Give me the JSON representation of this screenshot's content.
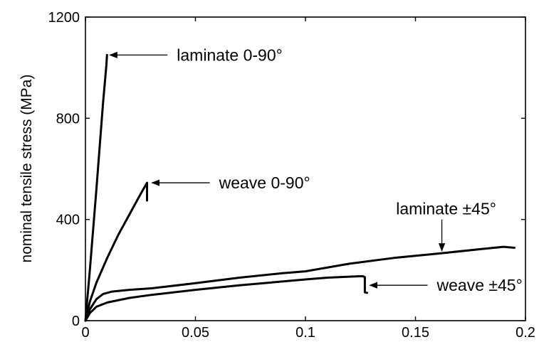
{
  "chart_data": {
    "type": "line",
    "title": "",
    "xlabel": "",
    "ylabel": "nominal tensile stress (MPa)",
    "xlim": [
      0,
      0.2
    ],
    "ylim": [
      0,
      1200
    ],
    "xticks": [
      "0",
      "0.05",
      "0.1",
      "0.15",
      "0.2"
    ],
    "yticks": [
      "0",
      "400",
      "800",
      "1200"
    ],
    "xtick_values": [
      0,
      0.05,
      0.1,
      0.15,
      0.2
    ],
    "ytick_values": [
      0,
      400,
      800,
      1200
    ],
    "grid": false,
    "legend": "none",
    "series": [
      {
        "name": "laminate 0-90°",
        "x": [
          0,
          0.002,
          0.005,
          0.008,
          0.0095,
          0.0098
        ],
        "y": [
          0,
          200,
          520,
          860,
          1010,
          1050
        ]
      },
      {
        "name": "weave 0-90°",
        "x": [
          0,
          0.002,
          0.005,
          0.01,
          0.015,
          0.02,
          0.025,
          0.028,
          0.028,
          0.028
        ],
        "y": [
          0,
          75,
          150,
          250,
          340,
          420,
          500,
          545,
          490,
          475
        ]
      },
      {
        "name": "laminate ±45°",
        "x": [
          0,
          0.002,
          0.005,
          0.008,
          0.012,
          0.02,
          0.03,
          0.05,
          0.07,
          0.09,
          0.1,
          0.12,
          0.14,
          0.16,
          0.18,
          0.19,
          0.195
        ],
        "y": [
          0,
          45,
          85,
          105,
          115,
          122,
          128,
          148,
          170,
          188,
          195,
          225,
          248,
          265,
          283,
          292,
          288
        ]
      },
      {
        "name": "weave ±45°",
        "x": [
          0,
          0.002,
          0.005,
          0.01,
          0.02,
          0.03,
          0.05,
          0.07,
          0.09,
          0.1,
          0.11,
          0.12,
          0.126,
          0.127,
          0.127,
          0.128
        ],
        "y": [
          0,
          30,
          55,
          72,
          90,
          102,
          122,
          140,
          155,
          163,
          170,
          174,
          176,
          172,
          112,
          110
        ]
      }
    ],
    "annotations": [
      {
        "text": "laminate 0-90°",
        "target": [
          0.0098,
          1050
        ],
        "arrow": "left"
      },
      {
        "text": "weave 0-90°",
        "target": [
          0.029,
          545
        ],
        "arrow": "left"
      },
      {
        "text": "laminate ±45°",
        "target": [
          0.162,
          265
        ],
        "arrow": "down"
      },
      {
        "text": "weave ±45°",
        "target": [
          0.128,
          140
        ],
        "arrow": "left"
      }
    ]
  }
}
